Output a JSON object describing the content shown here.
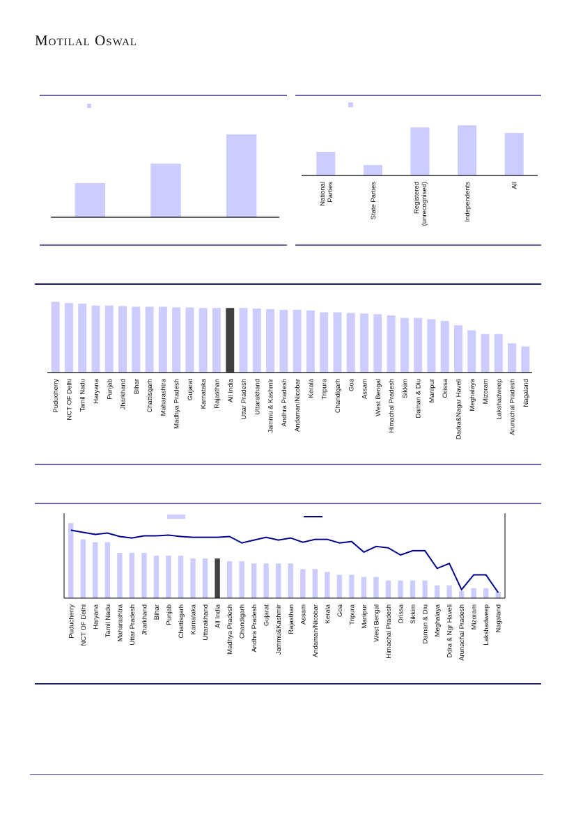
{
  "header": {
    "brand": "Motilal Oswal"
  },
  "colors": {
    "bar": "#ccccff",
    "highlight": "#404040",
    "line": "#00008b",
    "rule": "#6a64ad",
    "rule_dark": "#1c1a7a"
  },
  "chart_data": [
    {
      "type": "bar",
      "title": "",
      "categories": [
        "",
        "",
        ""
      ],
      "values": [
        49,
        77,
        119
      ],
      "legend": [
        ""
      ],
      "ylim": [
        0,
        130
      ],
      "note": "values are relative (no axis labels visible)"
    },
    {
      "type": "bar",
      "title": "",
      "categories": [
        "National Parties",
        "State Parties",
        "Registered (unrecognised)",
        "Independents",
        "All"
      ],
      "values": [
        34,
        15,
        69,
        72,
        61
      ],
      "legend": [
        ""
      ],
      "ylim": [
        0,
        85
      ],
      "note": "values are relative (no axis labels visible)"
    },
    {
      "type": "bar",
      "title": "",
      "categories": [
        "Puducherry",
        "NCT OF Delhi",
        "Tamil Nadu",
        "Haryana",
        "Punjab",
        "Jharkhand",
        "Bihar",
        "Chattisgarh",
        "Maharashtra",
        "Madhya Pradesh",
        "Gujarat",
        "Karnataka",
        "Rajasthan",
        "All India",
        "Uttar Pradesh",
        "Uttarakhand",
        "Jammu & Kashmir",
        "Andhra Pradesh",
        "Andaman/Nicobar",
        "Kerala",
        "Tripura",
        "Chandigarh",
        "Goa",
        "Assam",
        "West Bengal",
        "Himachal Pradesh",
        "Sikkim",
        "Daman & Diu",
        "Manipur",
        "Orissa",
        "Dadra&Nagar Haveli",
        "Meghalaya",
        "Mizoram",
        "Lakshadweep",
        "Arunachal Pradesh",
        "Nagaland"
      ],
      "values": [
        114,
        112,
        111,
        108,
        108,
        107,
        106,
        106,
        106,
        105,
        105,
        104,
        104,
        104,
        104,
        103,
        102,
        101,
        101,
        100,
        97,
        97,
        96,
        95,
        94,
        92,
        88,
        88,
        86,
        83,
        76,
        68,
        62,
        62,
        47,
        42
      ],
      "highlight": "All India",
      "ylim": [
        0,
        120
      ],
      "note": "values are relative (no axis labels visible)"
    },
    {
      "type": "bar+line",
      "title": "",
      "categories": [
        "Puducherry",
        "NCT OF Delhi",
        "Haryana",
        "Tamil Nadu",
        "Maharashtra",
        "Uttar Pradesh",
        "Jharkhand",
        "Bihar",
        "Punjab",
        "Chattisgarh",
        "Karnataka",
        "Uttarakhand",
        "All India",
        "Madhya Pradesh",
        "Chandigarh",
        "Andhra Pradesh",
        "Gujarat",
        "Jammu&Kashmir",
        "Rajasthan",
        "Assam",
        "Andaman/Nicobar",
        "Kerala",
        "Goa",
        "Tripura",
        "Manipur",
        "West Bengal",
        "Himachal Pradesh",
        "Orissa",
        "Sikkim",
        "Daman & Diu",
        "Meghalaya",
        "Ddra & Ngr Haveli",
        "Arunachal Pradesh",
        "Mizoram",
        "Lakshadweep",
        "Nagaland"
      ],
      "highlight": "All India",
      "series": [
        {
          "name": "",
          "type": "bar",
          "values": [
            106,
            83,
            79,
            79,
            64,
            64,
            64,
            60,
            60,
            60,
            56,
            56,
            56,
            52,
            52,
            49,
            49,
            49,
            49,
            41,
            41,
            37,
            33,
            33,
            30,
            30,
            25,
            25,
            25,
            25,
            18,
            18,
            10,
            14,
            14,
            9
          ]
        },
        {
          "name": "",
          "type": "line",
          "values": [
            96,
            93,
            90,
            92,
            87,
            85,
            88,
            88,
            89,
            87,
            86,
            86,
            86,
            87,
            78,
            82,
            86,
            82,
            85,
            79,
            83,
            83,
            78,
            80,
            65,
            73,
            71,
            61,
            67,
            67,
            42,
            49,
            12,
            33,
            33,
            8
          ]
        }
      ],
      "legend": [
        "",
        ""
      ],
      "ylim": [
        0,
        120
      ],
      "note": "values are relative (no axis labels visible)"
    }
  ]
}
